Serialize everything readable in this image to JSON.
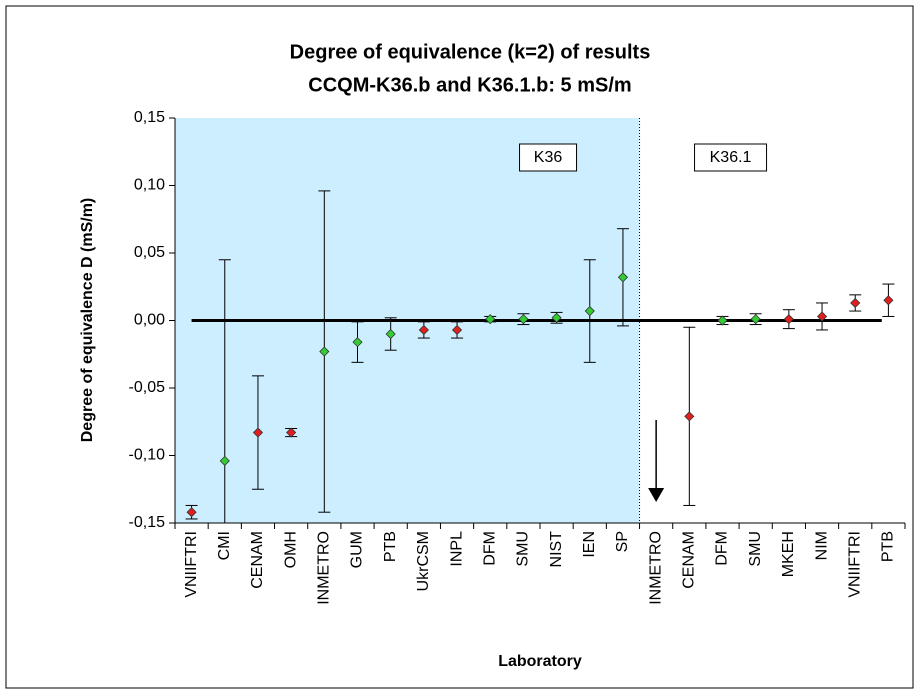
{
  "chart_data": {
    "type": "errorbar",
    "title": "Degree of equivalence (k=2) of results",
    "subtitle": "CCQM-K36.b and K36.1.b: 5 mS/m",
    "y_label": "Degree of equivalence D (mS/m)",
    "x_label": "Laboratory",
    "categories": [
      "VNIIFTRI",
      "CMI",
      "CENAM",
      "OMH",
      "INMETRO",
      "GUM",
      "PTB",
      "UkrCSM",
      "INPL",
      "DFM",
      "SMU",
      "NIST",
      "IEN",
      "SP",
      "INMETRO",
      "CENAM",
      "DFM",
      "SMU",
      "MKEH",
      "NIM",
      "VNIIFTRI",
      "PTB"
    ],
    "values": [
      -0.142,
      -0.104,
      -0.083,
      -0.083,
      -0.023,
      -0.016,
      -0.01,
      -0.007,
      -0.007,
      0.001,
      0.001,
      0.002,
      0.007,
      0.032,
      null,
      -0.071,
      0.0,
      0.001,
      0.001,
      0.003,
      0.013,
      0.015
    ],
    "errors": [
      0.005,
      0.149,
      0.042,
      0.003,
      0.119,
      0.015,
      0.012,
      0.006,
      0.006,
      0.002,
      0.004,
      0.004,
      0.038,
      0.036,
      null,
      0.066,
      0.003,
      0.004,
      0.007,
      0.01,
      0.006,
      0.012
    ],
    "point_colors": [
      "#e02020",
      "#33cc33",
      "#e02020",
      "#e02020",
      "#33cc33",
      "#33cc33",
      "#33cc33",
      "#e02020",
      "#e02020",
      "#33cc33",
      "#33cc33",
      "#33cc33",
      "#33cc33",
      "#33cc33",
      null,
      "#e02020",
      "#33cc33",
      "#33cc33",
      "#e02020",
      "#e02020",
      "#e02020",
      "#e02020"
    ],
    "groups": [
      {
        "label": "K36",
        "count": 14,
        "color": "#cceeff"
      },
      {
        "label": "K36.1",
        "count": 8,
        "color": "#ffffff"
      }
    ],
    "ylim": [
      -0.15,
      0.15
    ],
    "yticks": [
      {
        "value": -0.15,
        "label": "-0,15"
      },
      {
        "value": -0.1,
        "label": "-0,10"
      },
      {
        "value": -0.05,
        "label": "-0,05"
      },
      {
        "value": 0,
        "label": "0,00"
      },
      {
        "value": 0.05,
        "label": "0,05"
      },
      {
        "value": 0.1,
        "label": "0,10"
      },
      {
        "value": 0.15,
        "label": "0,15"
      }
    ]
  }
}
